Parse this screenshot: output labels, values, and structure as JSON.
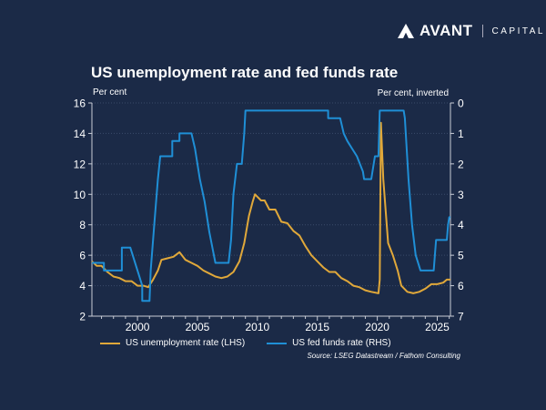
{
  "brand": {
    "name": "AVANT",
    "suffix": "CAPITAL"
  },
  "chart_data": {
    "type": "line",
    "title": "US unemployment rate and fed funds rate",
    "ylabel_left": "Per cent",
    "ylabel_right": "Per cent, inverted",
    "xlim": [
      1996.2,
      2026.1
    ],
    "ylim_left": [
      2,
      16
    ],
    "ylim_right": [
      0,
      7
    ],
    "right_axis_inverted": true,
    "x_ticks": [
      2000,
      2005,
      2010,
      2015,
      2020,
      2025
    ],
    "y_ticks_left": [
      2,
      4,
      6,
      8,
      10,
      12,
      14,
      16
    ],
    "y_ticks_right": [
      0,
      1,
      2,
      3,
      4,
      5,
      6,
      7
    ],
    "grid": "horizontal dotted",
    "legend_position": "bottom",
    "source": "Source: LSEG Datastream / Fathom Consulting",
    "series": [
      {
        "name": "US unemployment rate (LHS)",
        "axis": "left",
        "color": "#e0a83a",
        "x": [
          1996.2,
          1996.6,
          1997.0,
          1997.5,
          1998.0,
          1998.5,
          1999.0,
          1999.5,
          2000.0,
          2000.5,
          2000.9,
          2001.3,
          2001.7,
          2002.0,
          2002.5,
          2003.0,
          2003.5,
          2004.0,
          2004.5,
          2005.0,
          2005.5,
          2006.0,
          2006.5,
          2007.0,
          2007.5,
          2008.0,
          2008.5,
          2008.9,
          2009.3,
          2009.6,
          2009.8,
          2010.3,
          2010.6,
          2011.0,
          2011.5,
          2012.0,
          2012.5,
          2013.0,
          2013.5,
          2014.0,
          2014.5,
          2015.0,
          2015.5,
          2016.0,
          2016.5,
          2017.0,
          2017.5,
          2018.0,
          2018.5,
          2019.0,
          2019.5,
          2020.1,
          2020.2,
          2020.3,
          2020.5,
          2020.9,
          2021.3,
          2021.7,
          2022.0,
          2022.5,
          2023.0,
          2023.5,
          2024.0,
          2024.5,
          2025.0,
          2025.5,
          2025.8,
          2026.1
        ],
        "values": [
          5.6,
          5.3,
          5.3,
          4.9,
          4.6,
          4.5,
          4.3,
          4.3,
          4.0,
          4.0,
          3.9,
          4.4,
          5.0,
          5.7,
          5.8,
          5.9,
          6.2,
          5.7,
          5.5,
          5.3,
          5.0,
          4.8,
          4.6,
          4.5,
          4.6,
          4.9,
          5.6,
          6.8,
          8.6,
          9.5,
          10.0,
          9.6,
          9.6,
          9.0,
          9.0,
          8.2,
          8.1,
          7.6,
          7.3,
          6.6,
          6.0,
          5.6,
          5.2,
          4.9,
          4.9,
          4.5,
          4.3,
          4.0,
          3.9,
          3.7,
          3.6,
          3.5,
          4.4,
          14.7,
          11.0,
          6.8,
          6.0,
          5.0,
          4.0,
          3.6,
          3.5,
          3.6,
          3.8,
          4.1,
          4.1,
          4.2,
          4.4,
          4.4
        ]
      },
      {
        "name": "US fed funds rate (RHS)",
        "axis": "right",
        "color": "#1f8fd6",
        "x": [
          1996.2,
          1997.2,
          1997.2,
          1998.7,
          1998.7,
          1999.4,
          1999.6,
          2000.0,
          2000.4,
          2000.4,
          2001.0,
          2001.1,
          2001.4,
          2001.7,
          2001.9,
          2002.9,
          2002.9,
          2003.5,
          2003.5,
          2004.5,
          2004.8,
          2005.2,
          2005.6,
          2006.0,
          2006.5,
          2007.6,
          2007.8,
          2008.0,
          2008.3,
          2008.7,
          2008.9,
          2009.0,
          2015.9,
          2015.9,
          2016.9,
          2017.2,
          2017.5,
          2017.9,
          2018.3,
          2018.8,
          2018.9,
          2019.5,
          2019.8,
          2020.1,
          2020.2,
          2022.2,
          2022.3,
          2022.6,
          2022.9,
          2023.2,
          2023.6,
          2024.7,
          2024.8,
          2024.9,
          2025.8,
          2025.9,
          2026.0,
          2026.1
        ],
        "values": [
          5.25,
          5.25,
          5.5,
          5.5,
          4.75,
          4.75,
          5.0,
          5.5,
          6.0,
          6.5,
          6.5,
          5.5,
          4.0,
          2.5,
          1.75,
          1.75,
          1.25,
          1.25,
          1.0,
          1.0,
          1.5,
          2.5,
          3.25,
          4.25,
          5.25,
          5.25,
          4.5,
          3.0,
          2.0,
          2.0,
          1.0,
          0.25,
          0.25,
          0.5,
          0.5,
          1.0,
          1.25,
          1.5,
          1.75,
          2.25,
          2.5,
          2.5,
          1.75,
          1.75,
          0.25,
          0.25,
          0.5,
          2.5,
          4.0,
          5.0,
          5.5,
          5.5,
          5.0,
          4.5,
          4.5,
          4.0,
          3.75,
          3.75
        ]
      }
    ]
  }
}
